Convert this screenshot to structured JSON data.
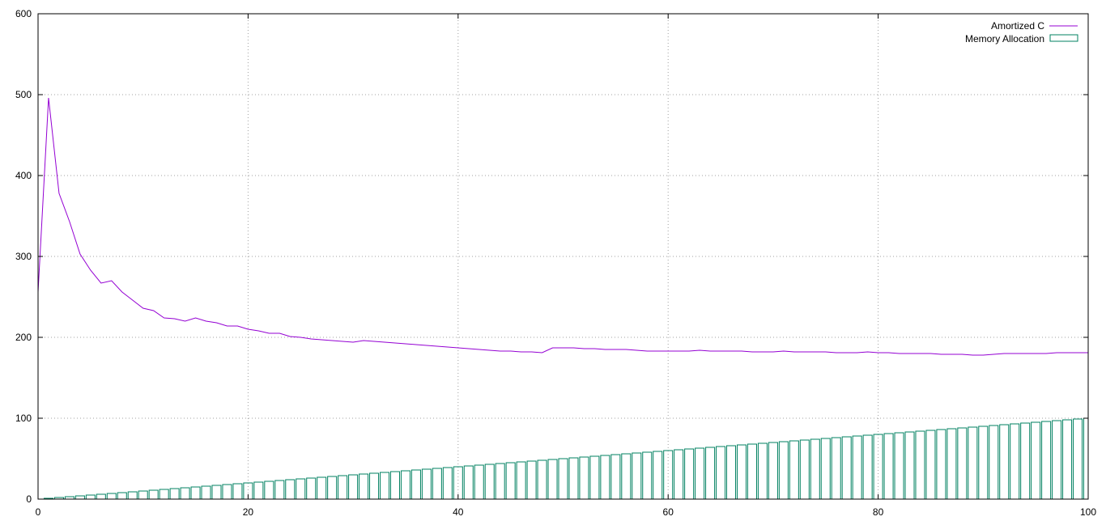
{
  "chart_data": {
    "type": "line",
    "title": "",
    "xlabel": "",
    "ylabel": "",
    "xlim": [
      0,
      100
    ],
    "ylim": [
      0,
      600
    ],
    "x_ticks": [
      0,
      20,
      40,
      60,
      80,
      100
    ],
    "y_ticks": [
      0,
      100,
      200,
      300,
      400,
      500,
      600
    ],
    "grid": true,
    "legend_position": "top-right",
    "series": [
      {
        "name": "Amortized C",
        "type": "line",
        "color": "#9400d3",
        "values": [
          256,
          496,
          378,
          343,
          303,
          283,
          267,
          270,
          256,
          246,
          236,
          233,
          224,
          223,
          220,
          224,
          220,
          218,
          214,
          214,
          210,
          208,
          205,
          205,
          201,
          200,
          198,
          197,
          196,
          195,
          194,
          196,
          195,
          194,
          193,
          192,
          191,
          190,
          189,
          188,
          187,
          186,
          185,
          184,
          183,
          183,
          182,
          182,
          181,
          187,
          187,
          187,
          186,
          186,
          185,
          185,
          185,
          184,
          183,
          183,
          183,
          183,
          183,
          184,
          183,
          183,
          183,
          183,
          182,
          182,
          182,
          183,
          182,
          182,
          182,
          182,
          181,
          181,
          181,
          182,
          181,
          181,
          180,
          180,
          180,
          180,
          179,
          179,
          179,
          178,
          178,
          179,
          180,
          180,
          180,
          180,
          180,
          181,
          181,
          181,
          181
        ]
      },
      {
        "name": "Memory Allocation",
        "type": "bar",
        "color": "#008060",
        "values": [
          0,
          1,
          2,
          3,
          4,
          5,
          6,
          7,
          8,
          9,
          10,
          11,
          12,
          13,
          14,
          15,
          16,
          17,
          18,
          19,
          20,
          21,
          22,
          23,
          24,
          25,
          26,
          27,
          28,
          29,
          30,
          31,
          32,
          33,
          34,
          35,
          36,
          37,
          38,
          39,
          40,
          41,
          42,
          43,
          44,
          45,
          46,
          47,
          48,
          49,
          50,
          51,
          52,
          53,
          54,
          55,
          56,
          57,
          58,
          59,
          60,
          61,
          62,
          63,
          64,
          65,
          66,
          67,
          68,
          69,
          70,
          71,
          72,
          73,
          74,
          75,
          76,
          77,
          78,
          79,
          80,
          81,
          82,
          83,
          84,
          85,
          86,
          87,
          88,
          89,
          90,
          91,
          92,
          93,
          94,
          95,
          96,
          97,
          98,
          99,
          100
        ]
      }
    ]
  },
  "colors": {
    "axis": "#000000",
    "grid": "#a0a0a0",
    "background": "#ffffff"
  }
}
